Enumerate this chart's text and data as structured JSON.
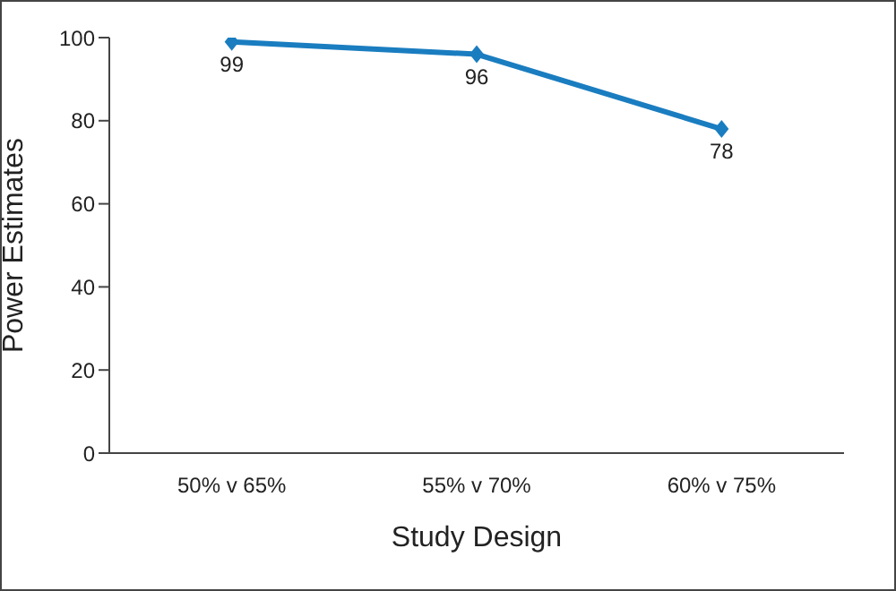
{
  "chart_data": {
    "type": "line",
    "xlabel": "Study Design",
    "ylabel": "Power Estimates",
    "categories": [
      "50% v 65%",
      "55% v 70%",
      "60% v 75%"
    ],
    "series": [
      {
        "color": "#1a7dc0",
        "values": [
          99,
          96,
          78
        ]
      }
    ],
    "ylim": [
      0,
      100
    ],
    "yticks": [
      0,
      20,
      40,
      60,
      80,
      100
    ],
    "grid": false,
    "marker": "diamond",
    "line_style": "solid",
    "data_labels": true
  }
}
